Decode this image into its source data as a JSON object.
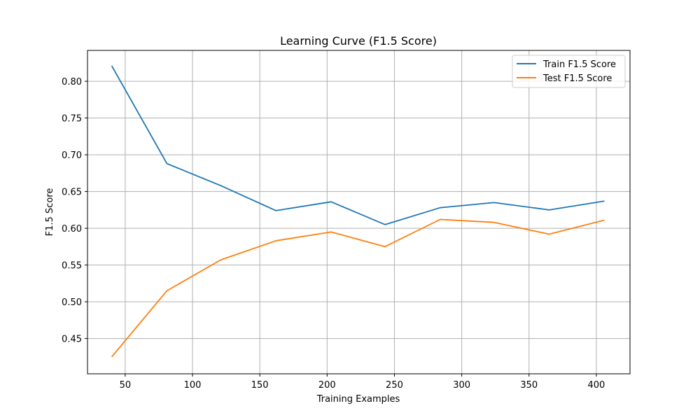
{
  "chart_data": {
    "type": "line",
    "title": "Learning Curve (F1.5 Score)",
    "xlabel": "Training Examples",
    "ylabel": "F1.5 Score",
    "xlim": [
      22,
      425
    ],
    "ylim": [
      0.402,
      0.842
    ],
    "xticks": [
      50,
      100,
      150,
      200,
      250,
      300,
      350,
      400
    ],
    "yticks": [
      0.45,
      0.5,
      0.55,
      0.6,
      0.65,
      0.7,
      0.75,
      0.8
    ],
    "ytick_labels": [
      "0.45",
      "0.50",
      "0.55",
      "0.60",
      "0.65",
      "0.70",
      "0.75",
      "0.80"
    ],
    "grid": true,
    "legend_position": "upper right",
    "x": [
      40,
      81,
      121,
      162,
      203,
      243,
      284,
      324,
      365,
      406
    ],
    "series": [
      {
        "name": "Train F1.5 Score",
        "color": "#1f77b4",
        "values": [
          0.821,
          0.688,
          0.658,
          0.624,
          0.636,
          0.605,
          0.628,
          0.635,
          0.625,
          0.637
        ]
      },
      {
        "name": "Test F1.5 Score",
        "color": "#ff7f0e",
        "values": [
          0.425,
          0.515,
          0.557,
          0.583,
          0.595,
          0.575,
          0.612,
          0.608,
          0.592,
          0.611
        ]
      }
    ]
  }
}
